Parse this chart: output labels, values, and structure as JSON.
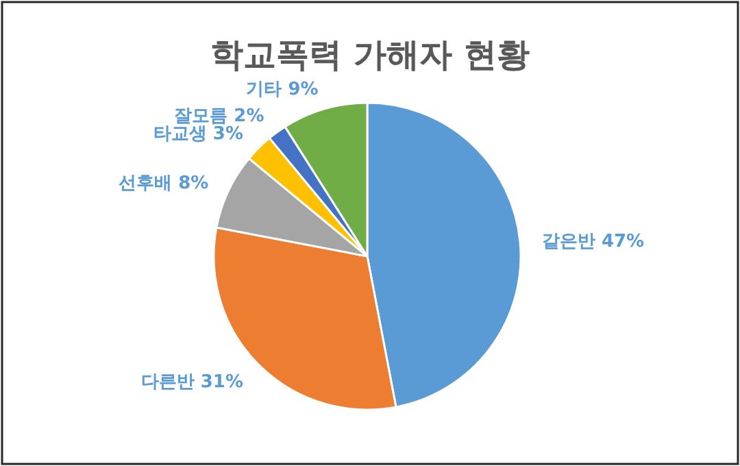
{
  "chart_data": {
    "type": "pie",
    "title": "학교폭력 가해자 현황",
    "categories": [
      "같은반",
      "다른반",
      "선후배",
      "타교생",
      "잘모름",
      "기타"
    ],
    "values": [
      47,
      31,
      8,
      3,
      2,
      9
    ],
    "value_labels": [
      "47%",
      "31%",
      "8%",
      "3%",
      "2%",
      "9%"
    ],
    "colors": [
      "#5b9bd5",
      "#ed7d31",
      "#a5a5a5",
      "#ffc000",
      "#4472c4",
      "#70ad47"
    ]
  }
}
